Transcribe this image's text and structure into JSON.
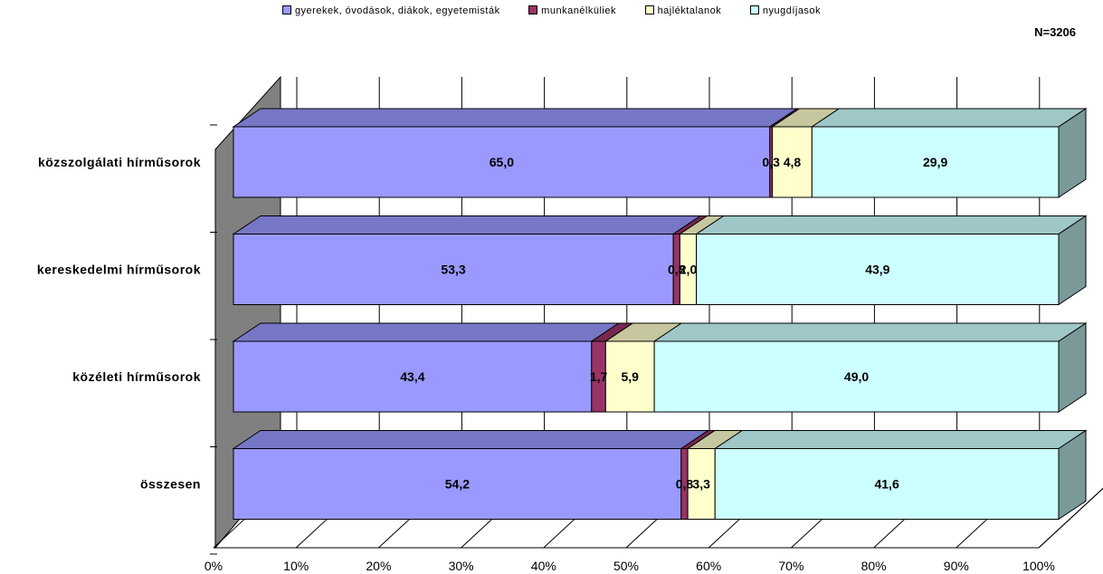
{
  "chart_data": {
    "type": "bar",
    "stacked": "percent",
    "orientation": "horizontal",
    "three_d": true,
    "note": "N=3206",
    "categories": [
      "közszolgálati hírműsorok",
      "kereskedelmi hírműsorok",
      "közéleti hírműsorok",
      "összesen"
    ],
    "series": [
      {
        "name": "gyerekek, óvodások, diákok, egyetemisták",
        "color": "#9999ff",
        "values": [
          65.0,
          53.3,
          43.4,
          54.2
        ]
      },
      {
        "name": "munkanélküliek",
        "color": "#993366",
        "values": [
          0.3,
          0.8,
          1.7,
          0.8
        ]
      },
      {
        "name": "hajléktalanok",
        "color": "#ffffcc",
        "values": [
          4.8,
          2.0,
          5.9,
          3.3
        ]
      },
      {
        "name": "nyugdíjasok",
        "color": "#ccffff",
        "values": [
          29.9,
          43.9,
          49.0,
          41.6
        ]
      }
    ],
    "xlim": [
      0,
      100
    ],
    "x_ticks": [
      "0%",
      "10%",
      "20%",
      "30%",
      "40%",
      "50%",
      "60%",
      "70%",
      "80%",
      "90%",
      "100%"
    ],
    "grid": true,
    "legend_position": "top"
  }
}
